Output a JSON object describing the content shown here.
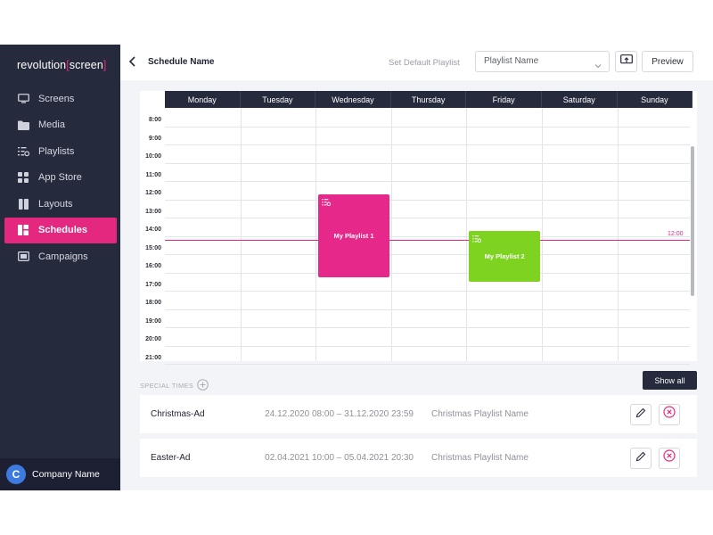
{
  "brand": {
    "logo_prefix": "revolution",
    "logo_open": "[",
    "logo_word": "screen",
    "logo_close": "]",
    "accent": "#e5287f",
    "sidebar_bg": "#262a3d"
  },
  "sidebar": {
    "items": [
      {
        "label": "Screens",
        "icon": "monitor-icon"
      },
      {
        "label": "Media",
        "icon": "folder-icon"
      },
      {
        "label": "Playlists",
        "icon": "playlist-icon"
      },
      {
        "label": "App Store",
        "icon": "apps-icon"
      },
      {
        "label": "Layouts",
        "icon": "layout-icon"
      },
      {
        "label": "Schedules",
        "icon": "schedule-icon",
        "active": true
      },
      {
        "label": "Campaigns",
        "icon": "campaign-icon"
      }
    ],
    "company": {
      "initial": "C",
      "name": "Company Name"
    }
  },
  "header": {
    "title": "Schedule Name",
    "default_playlist_label": "Set Default Playlist",
    "playlist_select_value": "Playlist Name",
    "preview_label": "Preview"
  },
  "calendar": {
    "days": [
      "Monday",
      "Tuesday",
      "Wednesday",
      "Thursday",
      "Friday",
      "Saturday",
      "Sunday"
    ],
    "hours": [
      "8:00",
      "9:00",
      "10:00",
      "11:00",
      "12:00",
      "13:00",
      "14:00",
      "15:00",
      "16:00",
      "17:00",
      "18:00",
      "19:00",
      "20:00",
      "21:00"
    ],
    "now_label": "12:00",
    "events": [
      {
        "title": "My Playlist 1",
        "day": "Wednesday",
        "start": "12:15",
        "end": "16:45",
        "color": "#e5288a"
      },
      {
        "title": "My Playlist 2",
        "day": "Friday",
        "start": "14:15",
        "end": "17:00",
        "color": "#7ed321"
      }
    ]
  },
  "special": {
    "label": "SPECIAL TIMES",
    "show_all_label": "Show all",
    "rows": [
      {
        "name": "Christmas-Ad",
        "range": "24.12.2020 08:00 – 31.12.2020 23:59",
        "playlist": "Christmas Playlist Name"
      },
      {
        "name": "Easter-Ad",
        "range": "02.04.2021 10:00 – 05.04.2021 20:30",
        "playlist": "Christmas Playlist Name"
      }
    ]
  }
}
